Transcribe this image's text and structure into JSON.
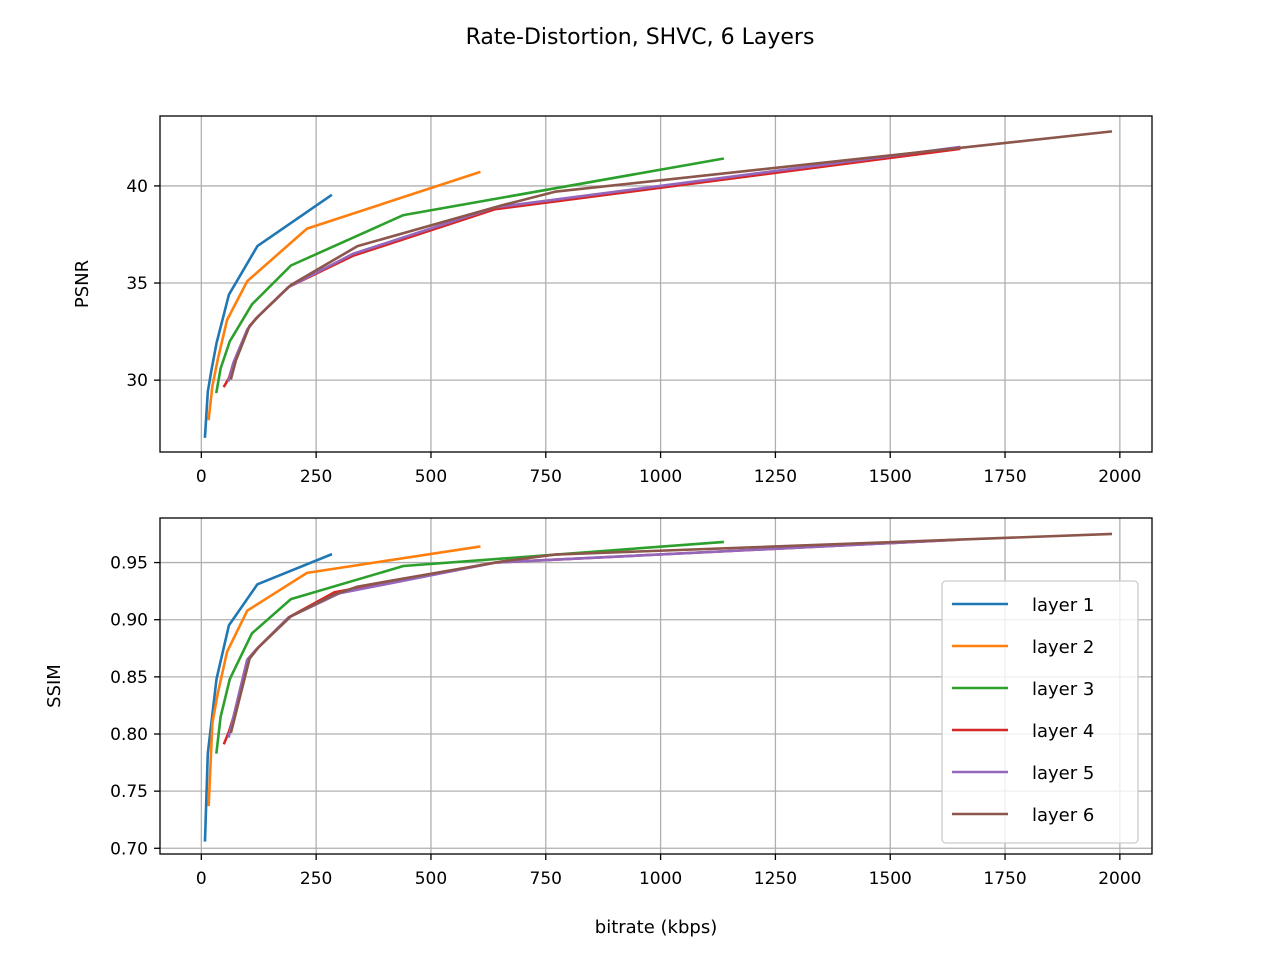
{
  "suptitle": "Rate-Distortion, SHVC, 6 Layers",
  "chart_data": [
    {
      "type": "line",
      "xlabel": "bitrate (kbps)",
      "ylabel": "PSNR",
      "xlim": [
        -90,
        2070
      ],
      "ylim": [
        26.3,
        43.6
      ],
      "xticks": [
        0,
        250,
        500,
        750,
        1000,
        1250,
        1500,
        1750,
        2000
      ],
      "yticks": [
        30,
        35,
        40
      ],
      "grid": true,
      "series": [
        {
          "name": "layer 1",
          "color": "#1f77b4",
          "x": [
            8,
            14,
            22,
            33,
            60,
            122,
            282
          ],
          "y": [
            27.1,
            29.4,
            30.5,
            31.9,
            34.4,
            36.9,
            39.5
          ]
        },
        {
          "name": "layer 2",
          "color": "#ff7f0e",
          "x": [
            16,
            24,
            36,
            56,
            100,
            230,
            605
          ],
          "y": [
            28.0,
            29.7,
            31.1,
            33.1,
            35.1,
            37.8,
            40.7
          ]
        },
        {
          "name": "layer 3",
          "color": "#2ca02c",
          "x": [
            33,
            42,
            62,
            110,
            195,
            440,
            1135
          ],
          "y": [
            29.4,
            30.6,
            32.0,
            33.9,
            35.9,
            38.5,
            41.4
          ]
        },
        {
          "name": "layer 4",
          "color": "#d62728",
          "x": [
            50,
            60,
            70,
            100,
            120,
            190,
            330,
            640,
            1650
          ],
          "y": [
            29.7,
            30.1,
            30.9,
            32.6,
            33.2,
            34.8,
            36.4,
            38.8,
            41.9
          ]
        },
        {
          "name": "layer 5",
          "color": "#9467bd",
          "x": [
            60,
            70,
            100,
            120,
            190,
            330,
            640,
            1650
          ],
          "y": [
            30.0,
            30.9,
            32.6,
            33.2,
            34.8,
            36.5,
            38.9,
            42.0
          ]
        },
        {
          "name": "layer 6",
          "color": "#8c564b",
          "x": [
            65,
            75,
            105,
            125,
            195,
            340,
            655,
            770,
            1980
          ],
          "y": [
            30.1,
            31.0,
            32.8,
            33.3,
            34.9,
            36.9,
            39.0,
            39.7,
            42.8
          ]
        }
      ]
    },
    {
      "type": "line",
      "xlabel": "bitrate (kbps)",
      "ylabel": "SSIM",
      "xlim": [
        -90,
        2070
      ],
      "ylim": [
        0.695,
        0.989
      ],
      "xticks": [
        0,
        250,
        500,
        750,
        1000,
        1250,
        1500,
        1750,
        2000
      ],
      "yticks": [
        0.7,
        0.75,
        0.8,
        0.85,
        0.9,
        0.95
      ],
      "yticklabels": [
        "0.70",
        "0.75",
        "0.80",
        "0.85",
        "0.90",
        "0.95"
      ],
      "grid": true,
      "legend": "center-right",
      "series": [
        {
          "name": "layer 1",
          "color": "#1f77b4",
          "x": [
            8,
            14,
            22,
            33,
            60,
            122,
            282
          ],
          "y": [
            0.707,
            0.783,
            0.81,
            0.848,
            0.895,
            0.931,
            0.957
          ]
        },
        {
          "name": "layer 2",
          "color": "#ff7f0e",
          "x": [
            16,
            24,
            36,
            56,
            100,
            230,
            605
          ],
          "y": [
            0.738,
            0.81,
            0.836,
            0.872,
            0.908,
            0.941,
            0.964
          ]
        },
        {
          "name": "layer 3",
          "color": "#2ca02c",
          "x": [
            33,
            42,
            62,
            110,
            195,
            440,
            1135
          ],
          "y": [
            0.784,
            0.815,
            0.848,
            0.888,
            0.918,
            0.947,
            0.968
          ]
        },
        {
          "name": "layer 4",
          "color": "#d62728",
          "x": [
            50,
            60,
            70,
            100,
            120,
            190,
            290,
            640,
            1650
          ],
          "y": [
            0.792,
            0.802,
            0.815,
            0.865,
            0.874,
            0.902,
            0.924,
            0.95,
            0.97
          ]
        },
        {
          "name": "layer 5",
          "color": "#9467bd",
          "x": [
            60,
            70,
            100,
            120,
            190,
            300,
            640,
            1650
          ],
          "y": [
            0.798,
            0.815,
            0.865,
            0.874,
            0.902,
            0.923,
            0.95,
            0.97
          ]
        },
        {
          "name": "layer 6",
          "color": "#8c564b",
          "x": [
            65,
            75,
            105,
            125,
            195,
            290,
            340,
            655,
            770,
            1980
          ],
          "y": [
            0.802,
            0.818,
            0.866,
            0.876,
            0.903,
            0.922,
            0.929,
            0.951,
            0.957,
            0.975
          ]
        }
      ]
    }
  ]
}
